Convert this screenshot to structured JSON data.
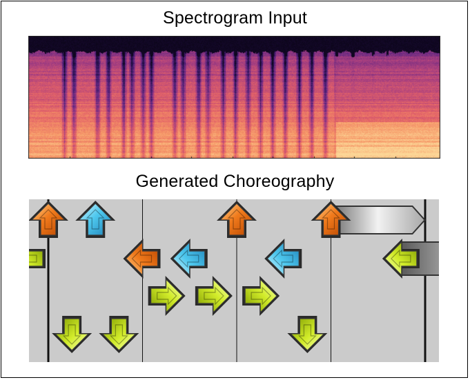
{
  "titles": {
    "spectrogram": "Spectrogram Input",
    "choreography": "Generated Choreography"
  },
  "colors": {
    "spec_dark": "#0c0616",
    "spec_purple": "#5a2a88",
    "spec_magenta": "#b5487a",
    "spec_orange": "#f0845a",
    "spec_bright": "#fcc48a",
    "lane_bg": "#cbcbcb",
    "arrow_orange": "#f07a1c",
    "arrow_cyan": "#4ec8ee",
    "arrow_yellow": "#d2ec2a",
    "hold_gray": "#8a8a8a"
  },
  "choreography": {
    "lanes": [
      "left",
      "down",
      "up",
      "right"
    ],
    "measure_bars": 4,
    "notes": [
      {
        "dir": "up",
        "color": "orange",
        "beat": 0.0
      },
      {
        "dir": "up",
        "color": "cyan",
        "beat": 0.5
      },
      {
        "dir": "down",
        "color": "yellow",
        "beat": 0.25
      },
      {
        "dir": "down",
        "color": "yellow",
        "beat": 0.75
      },
      {
        "dir": "left",
        "color": "orange",
        "beat": 1.0
      },
      {
        "dir": "right",
        "color": "yellow",
        "beat": 1.25
      },
      {
        "dir": "left",
        "color": "cyan",
        "beat": 1.5
      },
      {
        "dir": "right",
        "color": "yellow",
        "beat": 1.75
      },
      {
        "dir": "up",
        "color": "orange",
        "beat": 2.0
      },
      {
        "dir": "right",
        "color": "yellow",
        "beat": 2.25
      },
      {
        "dir": "left",
        "color": "cyan",
        "beat": 2.5
      },
      {
        "dir": "down",
        "color": "yellow",
        "beat": 2.75
      },
      {
        "dir": "up",
        "color": "orange",
        "beat": 3.0,
        "hold": true
      },
      {
        "dir": "left",
        "color": "yellow",
        "beat": 3.75,
        "hold": true
      }
    ]
  }
}
